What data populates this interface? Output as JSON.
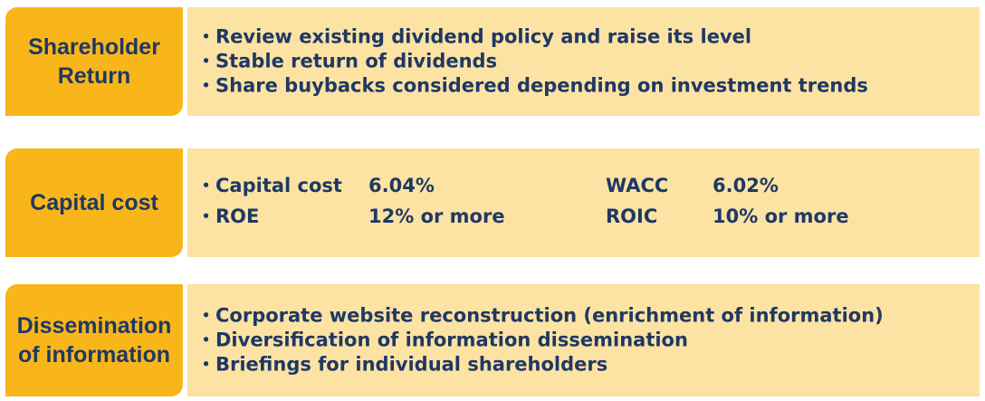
{
  "shareholder_return": {
    "label_lines": [
      "Shareholder",
      "Return"
    ],
    "items": [
      "・Review existing dividend policy and raise its level",
      "・Stable return of dividends",
      "・Share buybacks considered depending on investment trends"
    ]
  },
  "capital_cost": {
    "label": "Capital cost",
    "metrics": [
      {
        "label": "・Capital cost",
        "value": "6.04%"
      },
      {
        "label": "WACC",
        "value": "6.02%"
      },
      {
        "label": "・ROE",
        "value": "12% or more"
      },
      {
        "label": "ROIC",
        "value": "10% or more"
      }
    ]
  },
  "dissemination": {
    "label_lines": [
      "Dissemination",
      "of information"
    ],
    "items": [
      "・Corporate website reconstruction (enrichment of information)",
      "・Diversification of information dissemination",
      "・Briefings for individual shareholders"
    ]
  },
  "colors": {
    "label_background": "#f8b61b",
    "content_background": "#fce3a4",
    "text": "#1f3864"
  }
}
